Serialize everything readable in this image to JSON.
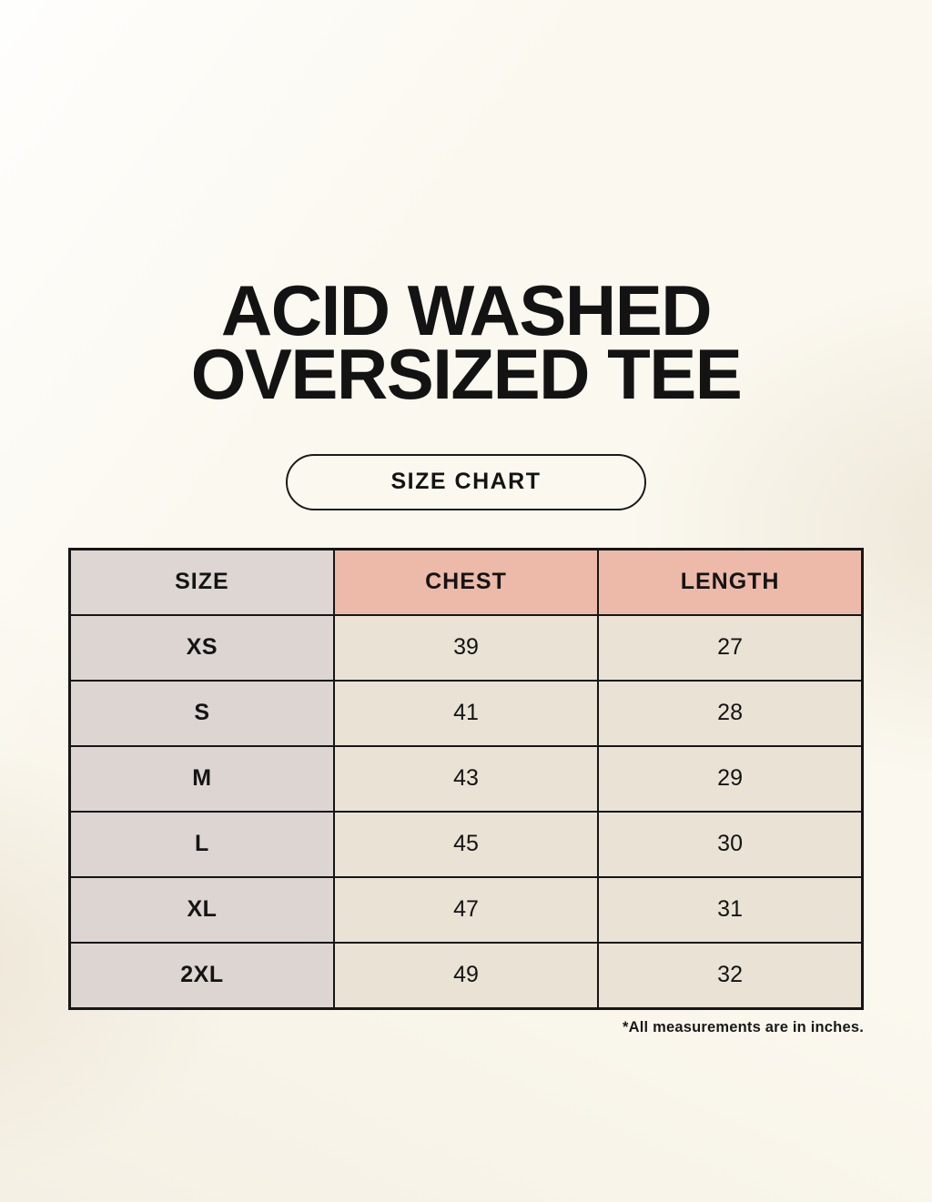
{
  "page": {
    "title_line1": "ACID WASHED",
    "title_line2": "OVERSIZED TEE",
    "badge_label": "SIZE CHART",
    "footnote": "*All measurements are in inches."
  },
  "size_chart": {
    "columns": [
      "SIZE",
      "CHEST",
      "LENGTH"
    ],
    "rows": [
      {
        "size": "XS",
        "chest": "39",
        "length": "27"
      },
      {
        "size": "S",
        "chest": "41",
        "length": "28"
      },
      {
        "size": "M",
        "chest": "43",
        "length": "29"
      },
      {
        "size": "L",
        "chest": "45",
        "length": "30"
      },
      {
        "size": "XL",
        "chest": "47",
        "length": "31"
      },
      {
        "size": "2XL",
        "chest": "49",
        "length": "32"
      }
    ],
    "units": "inches"
  },
  "colors": {
    "background": "#fbf8ef",
    "header_accent": "#edbaa9",
    "size_column": "#dcd5d1",
    "value_cell": "#e9e2d5",
    "border": "#161616",
    "text": "#141414"
  },
  "chart_data": {
    "type": "table",
    "title": "ACID WASHED OVERSIZED TEE — SIZE CHART",
    "columns": [
      "SIZE",
      "CHEST",
      "LENGTH"
    ],
    "rows": [
      [
        "XS",
        39,
        27
      ],
      [
        "S",
        41,
        28
      ],
      [
        "M",
        43,
        29
      ],
      [
        "L",
        45,
        30
      ],
      [
        "XL",
        47,
        31
      ],
      [
        "2XL",
        49,
        32
      ]
    ],
    "note": "*All measurements are in inches."
  }
}
